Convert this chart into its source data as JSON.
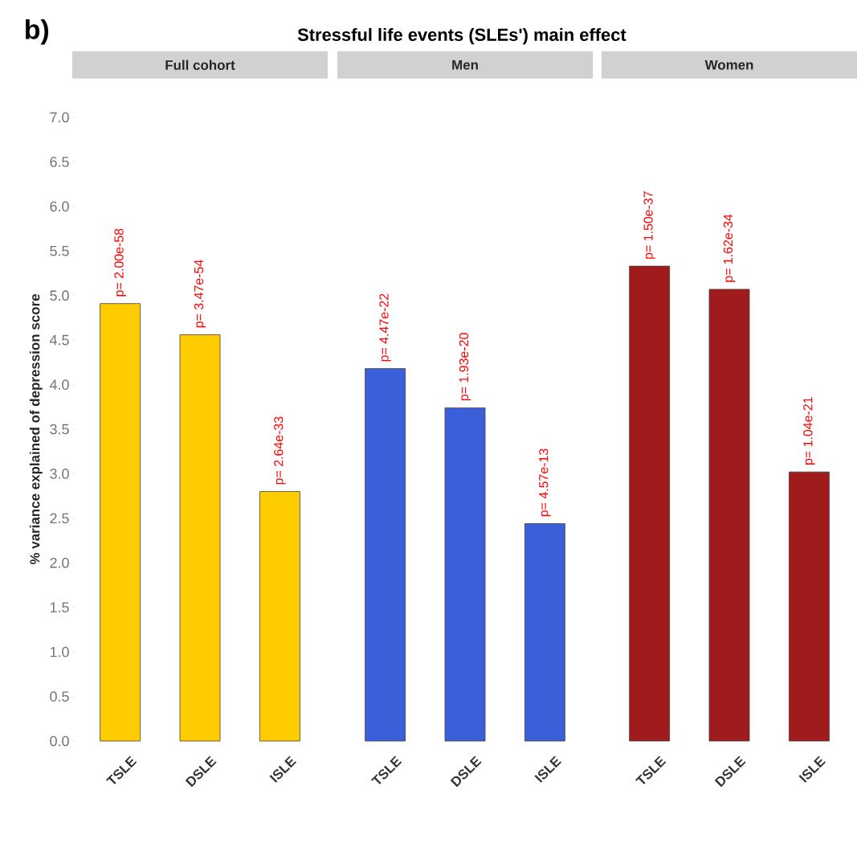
{
  "chart_data": [
    {
      "type": "bar",
      "title": "Full cohort",
      "ylabel": "% variance explained of depression score",
      "annotations": [
        "b)",
        "Stressful life events (SLEs') main effect"
      ],
      "categories": [
        "TSLE",
        "DSLE",
        "ISLE"
      ],
      "values": [
        4.91,
        4.56,
        2.8
      ],
      "color": "#ffcc00",
      "value_labels": [
        "p= 2.00e-58",
        "p= 3.47e-54",
        "p= 2.64e-33"
      ],
      "ylim": [
        0,
        7
      ],
      "yticks": [
        {
          "value": 0,
          "label": "0.0"
        },
        {
          "value": 0.5,
          "label": "0.5"
        },
        {
          "value": 1,
          "label": "1.0"
        },
        {
          "value": 1.5,
          "label": "1.5"
        },
        {
          "value": 2,
          "label": "2.0"
        },
        {
          "value": 2.5,
          "label": "2.5"
        },
        {
          "value": 3,
          "label": "3.0"
        },
        {
          "value": 3.5,
          "label": "3.5"
        },
        {
          "value": 4,
          "label": "4.0"
        },
        {
          "value": 4.5,
          "label": "4.5"
        },
        {
          "value": 5,
          "label": "5.0"
        },
        {
          "value": 5.5,
          "label": "5.5"
        },
        {
          "value": 6,
          "label": "6.0"
        },
        {
          "value": 6.5,
          "label": "6.5"
        },
        {
          "value": 7,
          "label": "7.0"
        }
      ]
    },
    {
      "type": "bar",
      "title": "Men",
      "categories": [
        "TSLE",
        "DSLE",
        "ISLE"
      ],
      "values": [
        4.18,
        3.74,
        2.44
      ],
      "color": "#3a5fd9",
      "value_labels": [
        "p= 4.47e-22",
        "p= 1.93e-20",
        "p= 4.57e-13"
      ],
      "ylim": [
        0,
        7
      ],
      "tick_labels": "x"
    },
    {
      "type": "bar",
      "title": "Women",
      "categories": [
        "TSLE",
        "DSLE",
        "ISLE"
      ],
      "values": [
        5.33,
        5.07,
        3.02
      ],
      "color": "#a01c1c",
      "value_labels": [
        "p= 1.50e-37",
        "p= 1.62e-34",
        "p= 1.04e-21"
      ],
      "ylim": [
        0,
        7
      ],
      "tick_labels": "x"
    }
  ]
}
